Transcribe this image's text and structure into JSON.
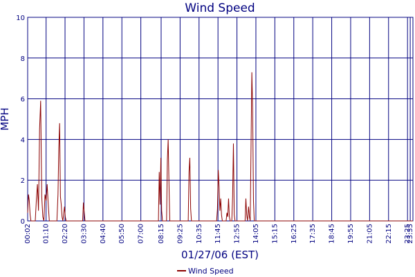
{
  "chart_data": {
    "type": "line",
    "title": "Wind Speed",
    "xlabel": "01/27/06 (EST)",
    "ylabel": "MPH",
    "ylim": [
      0,
      10
    ],
    "yticks": [
      0,
      2,
      4,
      6,
      8,
      10
    ],
    "xlim": [
      "00:02",
      "23:45"
    ],
    "xticks": [
      "00:02",
      "01:10",
      "02:20",
      "03:30",
      "04:40",
      "05:50",
      "07:00",
      "08:15",
      "09:25",
      "10:35",
      "11:45",
      "12:55",
      "14:05",
      "15:15",
      "16:25",
      "17:35",
      "18:45",
      "19:55",
      "21:05",
      "22:15",
      "23:25",
      "23:35"
    ],
    "grid": true,
    "legend_position": "bottom-center",
    "series": [
      {
        "name": "Wind Speed",
        "color": "#8b0000",
        "points": [
          [
            "00:02",
            0.4
          ],
          [
            "00:05",
            1.3
          ],
          [
            "00:08",
            1.0
          ],
          [
            "00:11",
            0.3
          ],
          [
            "00:14",
            0
          ],
          [
            "00:30",
            0
          ],
          [
            "00:34",
            1.0
          ],
          [
            "00:38",
            1.8
          ],
          [
            "00:42",
            0.5
          ],
          [
            "00:46",
            4.5
          ],
          [
            "00:50",
            5.9
          ],
          [
            "00:54",
            1.2
          ],
          [
            "00:58",
            0.2
          ],
          [
            "01:02",
            0
          ],
          [
            "01:06",
            1.3
          ],
          [
            "01:10",
            1.0
          ],
          [
            "01:14",
            1.8
          ],
          [
            "01:18",
            0.8
          ],
          [
            "01:22",
            0
          ],
          [
            "01:50",
            0
          ],
          [
            "01:54",
            1.3
          ],
          [
            "01:57",
            3.6
          ],
          [
            "02:00",
            4.8
          ],
          [
            "02:03",
            1.2
          ],
          [
            "02:06",
            0.8
          ],
          [
            "02:09",
            0.2
          ],
          [
            "02:12",
            0
          ],
          [
            "02:18",
            0.7
          ],
          [
            "02:21",
            0.2
          ],
          [
            "02:24",
            0
          ],
          [
            "03:25",
            0
          ],
          [
            "03:28",
            0.9
          ],
          [
            "03:31",
            0.4
          ],
          [
            "03:34",
            0
          ],
          [
            "08:05",
            0
          ],
          [
            "08:08",
            2.4
          ],
          [
            "08:11",
            0.8
          ],
          [
            "08:14",
            3.1
          ],
          [
            "08:17",
            0.5
          ],
          [
            "08:20",
            0
          ],
          [
            "08:35",
            0
          ],
          [
            "08:38",
            3.0
          ],
          [
            "08:41",
            4.0
          ],
          [
            "08:44",
            1.8
          ],
          [
            "08:47",
            0
          ],
          [
            "09:55",
            0
          ],
          [
            "09:58",
            2.4
          ],
          [
            "10:01",
            3.1
          ],
          [
            "10:04",
            0.6
          ],
          [
            "10:07",
            0
          ],
          [
            "11:40",
            0
          ],
          [
            "11:43",
            0.6
          ],
          [
            "11:46",
            2.5
          ],
          [
            "11:49",
            1.7
          ],
          [
            "11:52",
            0.5
          ],
          [
            "11:55",
            1.1
          ],
          [
            "11:58",
            0.3
          ],
          [
            "12:01",
            0
          ],
          [
            "12:15",
            0
          ],
          [
            "12:18",
            0.4
          ],
          [
            "12:21",
            0.2
          ],
          [
            "12:24",
            1.1
          ],
          [
            "12:27",
            0.2
          ],
          [
            "12:30",
            0
          ],
          [
            "12:36",
            0
          ],
          [
            "12:39",
            1.2
          ],
          [
            "12:42",
            3.8
          ],
          [
            "12:45",
            0.3
          ],
          [
            "12:48",
            0
          ],
          [
            "13:25",
            0
          ],
          [
            "13:28",
            1.1
          ],
          [
            "13:31",
            0.3
          ],
          [
            "13:34",
            0
          ],
          [
            "13:38",
            0.7
          ],
          [
            "13:41",
            0.2
          ],
          [
            "13:44",
            0
          ],
          [
            "13:47",
            3.6
          ],
          [
            "13:50",
            7.3
          ],
          [
            "13:53",
            5.5
          ],
          [
            "13:56",
            1.0
          ],
          [
            "13:59",
            0
          ],
          [
            "23:45",
            0
          ]
        ]
      }
    ]
  }
}
